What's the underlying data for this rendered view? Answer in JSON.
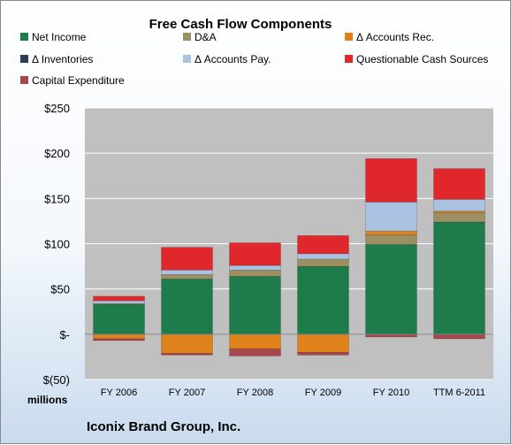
{
  "chart_data": {
    "type": "bar",
    "stacked": true,
    "title": "Free Cash Flow Components",
    "units_label": "millions",
    "company": "Iconix Brand Group, Inc.",
    "ylim": [
      -50,
      250
    ],
    "yticks": [
      {
        "value": 250,
        "label": "$250"
      },
      {
        "value": 200,
        "label": "$200"
      },
      {
        "value": 150,
        "label": "$150"
      },
      {
        "value": 100,
        "label": "$100"
      },
      {
        "value": 50,
        "label": "$50"
      },
      {
        "value": 0,
        "label": "$-"
      },
      {
        "value": -50,
        "label": "$(50)"
      }
    ],
    "categories": [
      "FY 2006",
      "FY 2007",
      "FY 2008",
      "FY 2009",
      "FY 2010",
      "TTM 6-2011"
    ],
    "legend_position": "top",
    "series": [
      {
        "name": "Net Income",
        "color": "#1e7b4a",
        "values": [
          33,
          61,
          64,
          75,
          99,
          124
        ]
      },
      {
        "name": "D&A",
        "color": "#9c8f62",
        "values": [
          1,
          5,
          7,
          8,
          11,
          10
        ]
      },
      {
        "name": "Δ Accounts Rec.",
        "color": "#e0821c",
        "values": [
          -5,
          -21,
          -16,
          -20,
          4,
          2
        ]
      },
      {
        "name": "Δ Inventories",
        "color": "#2b3c55",
        "values": [
          0,
          0,
          0,
          0,
          0,
          0
        ]
      },
      {
        "name": "Δ Accounts Pay.",
        "color": "#a9c2e2",
        "values": [
          3,
          5,
          5,
          6,
          32,
          13
        ]
      },
      {
        "name": "Questionable Cash Sources",
        "color": "#e0282c",
        "values": [
          5,
          25,
          25,
          20,
          48,
          34
        ]
      },
      {
        "name": "Capital Expenditure",
        "color": "#a8474b",
        "values": [
          -2,
          -2,
          -8,
          -3,
          -3,
          -5
        ]
      }
    ]
  }
}
